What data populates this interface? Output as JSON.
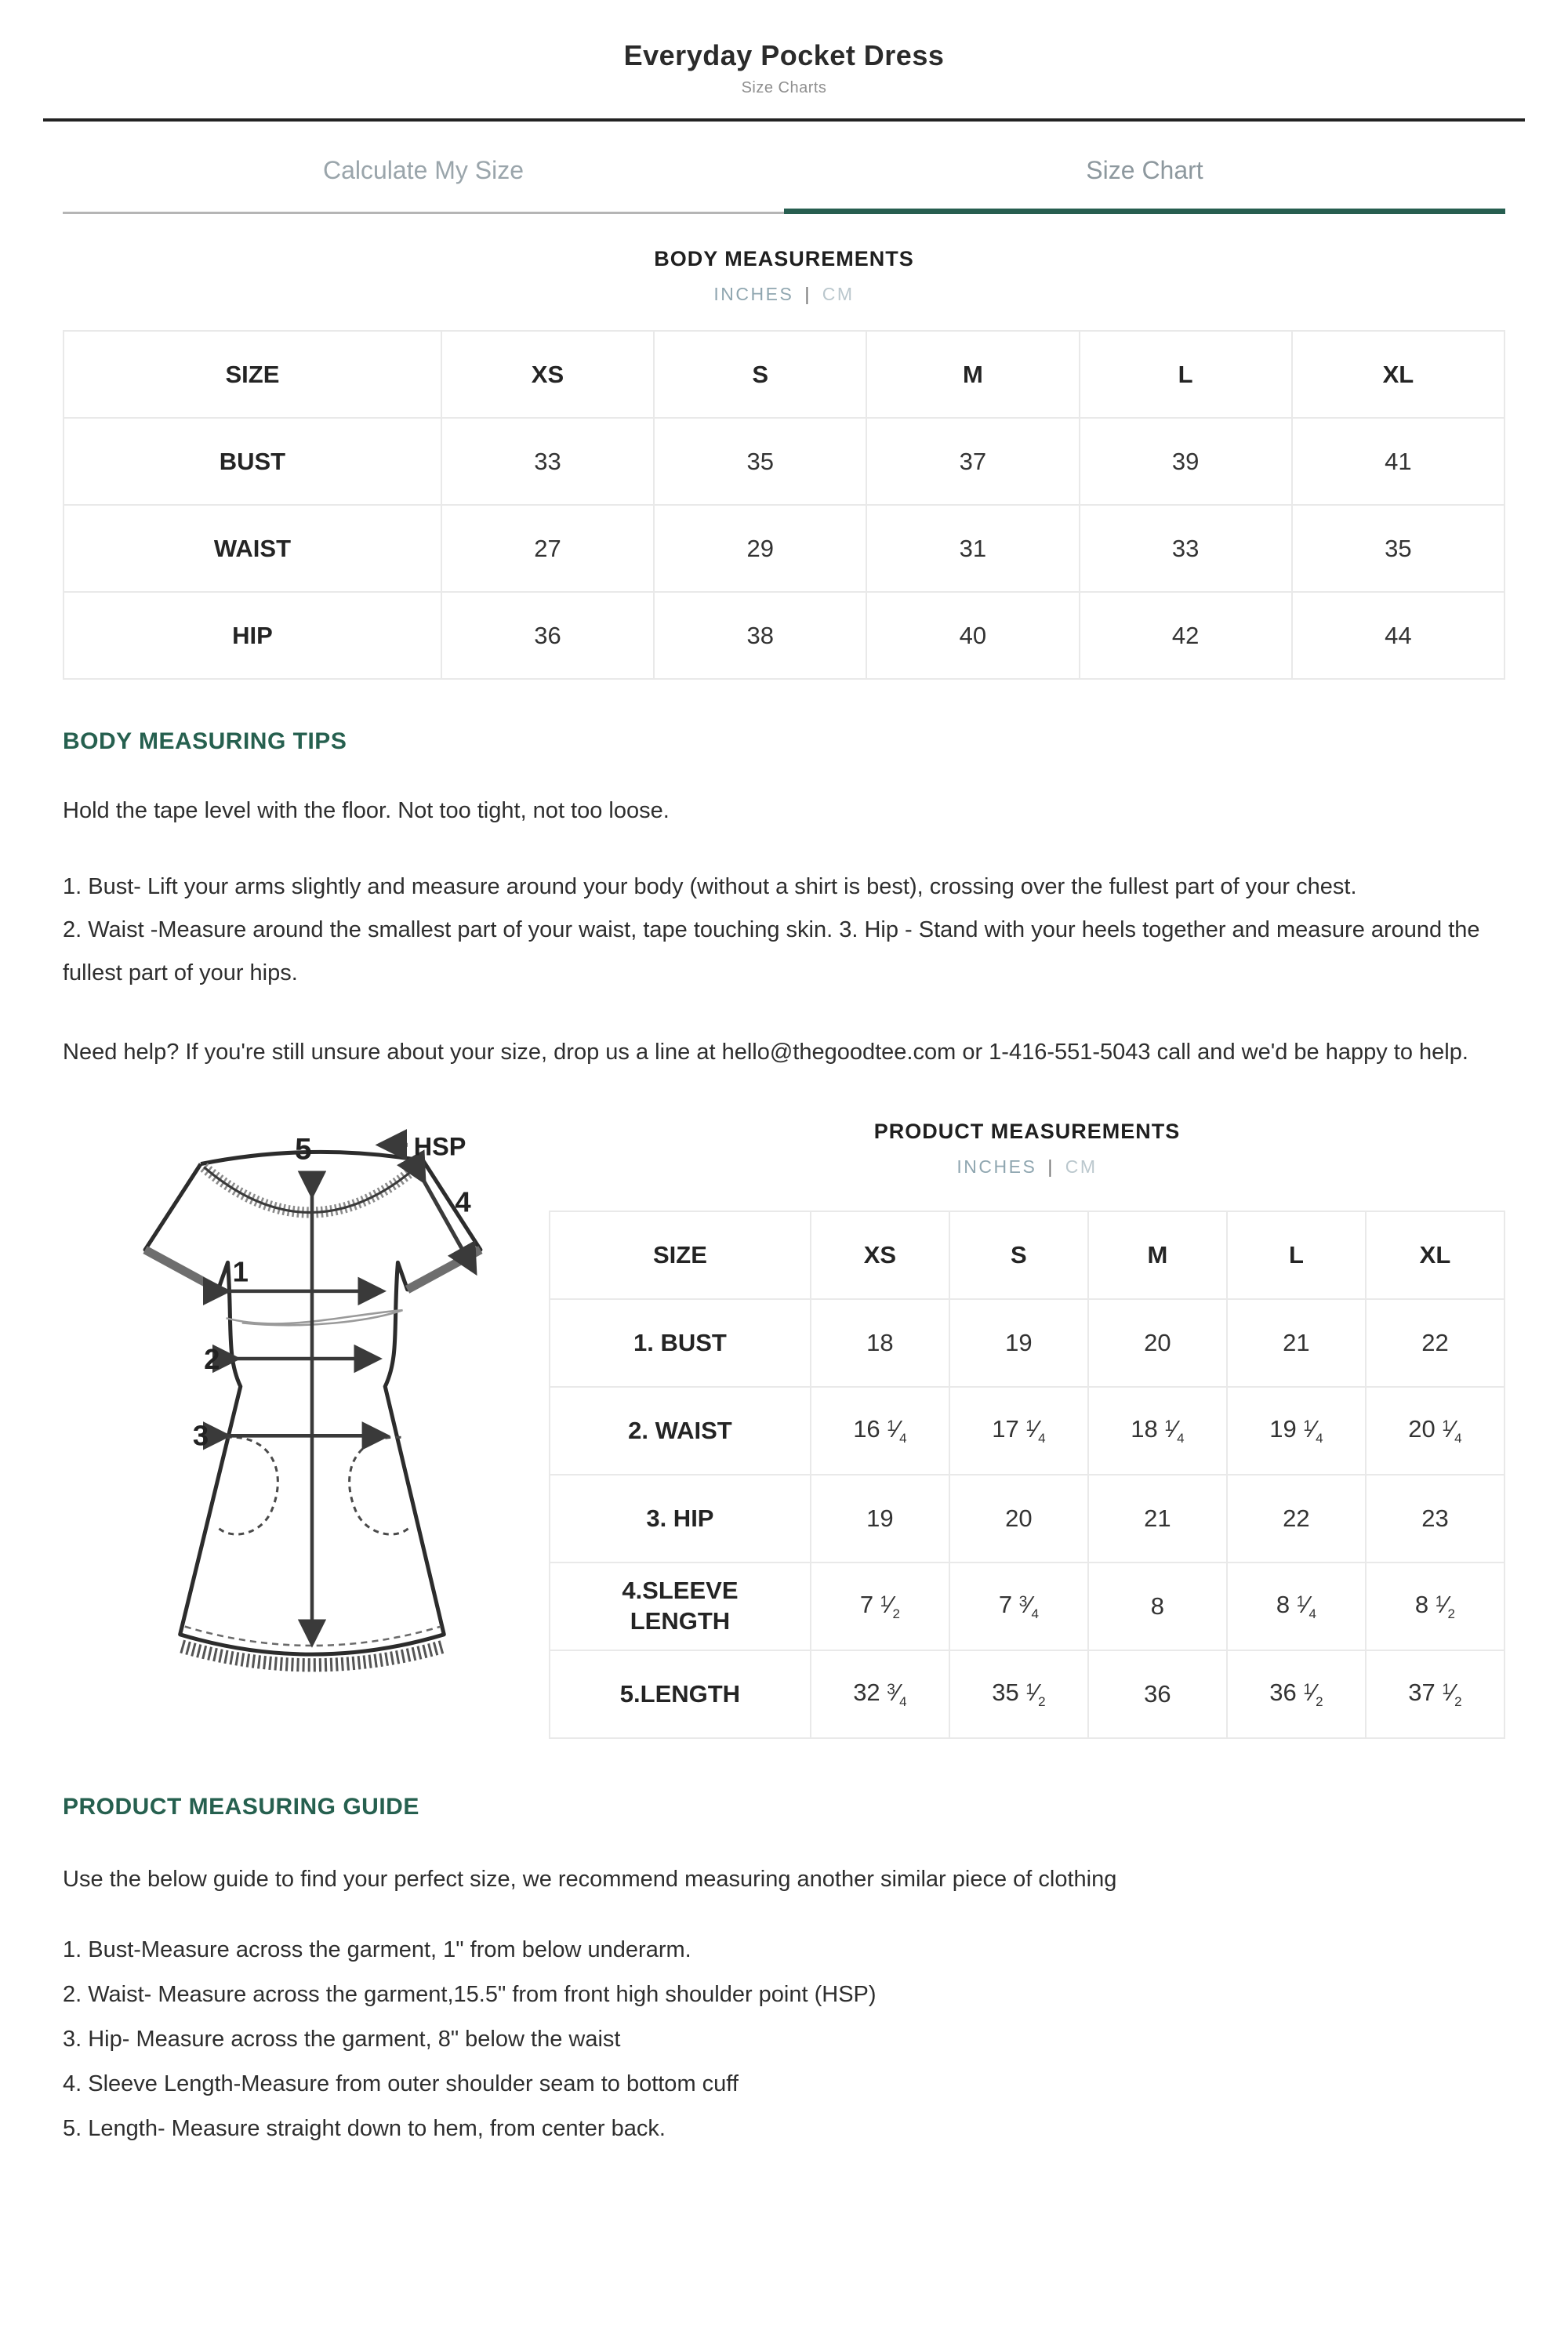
{
  "page": {
    "title": "Everyday Pocket Dress",
    "subtitle": "Size Charts"
  },
  "tabs": {
    "calculate": "Calculate My Size",
    "size_chart": "Size Chart"
  },
  "body_section": {
    "heading": "BODY MEASUREMENTS",
    "unit_inches": "INCHES",
    "unit_divider": "|",
    "unit_cm": "CM",
    "table": {
      "header": [
        "SIZE",
        "XS",
        "S",
        "M",
        "L",
        "XL"
      ],
      "rows": [
        {
          "label": "BUST",
          "values": [
            "33",
            "35",
            "37",
            "39",
            "41"
          ]
        },
        {
          "label": "WAIST",
          "values": [
            "27",
            "29",
            "31",
            "33",
            "35"
          ]
        },
        {
          "label": "HIP",
          "values": [
            "36",
            "38",
            "40",
            "42",
            "44"
          ]
        }
      ]
    }
  },
  "tips_section": {
    "heading": "BODY MEASURING TIPS",
    "intro": "Hold the tape level with the floor. Not too tight, not too loose.",
    "para1": "1. Bust- Lift your arms slightly and measure around your body (without a shirt is best), crossing over the fullest part of your chest.",
    "para2": "2. Waist -Measure around the smallest part of your waist, tape touching skin. 3. Hip - Stand with your heels together and measure around the fullest part of your hips.",
    "help": "Need help? If you're still unsure about your size, drop us a line at hello@thegoodtee.com or 1-416-551-5043 call and we'd be happy to help."
  },
  "product_section": {
    "heading": "PRODUCT MEASUREMENTS",
    "unit_inches": "INCHES",
    "unit_divider": "|",
    "unit_cm": "CM",
    "table": {
      "header": [
        "SIZE",
        "XS",
        "S",
        "M",
        "L",
        "XL"
      ],
      "rows": [
        {
          "label": "1. BUST",
          "values": [
            "18",
            "19",
            "20",
            "21",
            "22"
          ]
        },
        {
          "label": "2. WAIST",
          "values": [
            "16 1/4",
            "17 1/4",
            "18 1/4",
            "19 1/4",
            "20 1/4"
          ]
        },
        {
          "label": "3. HIP",
          "values": [
            "19",
            "20",
            "21",
            "22",
            "23"
          ]
        },
        {
          "label": "4.SLEEVE\nLENGTH",
          "values": [
            "7 1/2",
            "7 3/4",
            "8",
            "8 1/4",
            "8 1/2"
          ]
        },
        {
          "label": "5.LENGTH",
          "values": [
            "32 3/4",
            "35 1/2",
            "36",
            "36 1/2",
            "37 1/2"
          ]
        }
      ]
    }
  },
  "diagram": {
    "labels": {
      "bust": "1",
      "waist": "2",
      "hip": "3",
      "sleeve": "4",
      "length": "5",
      "hsp": "HSP"
    }
  },
  "guide_section": {
    "heading": "PRODUCT MEASURING GUIDE",
    "intro": "Use the below guide to find your perfect size, we recommend measuring another similar piece of clothing",
    "items": [
      "1. Bust-Measure across the garment, 1\" from below underarm.",
      "2. Waist- Measure across the garment,15.5\" from front high shoulder point (HSP)",
      "3. Hip- Measure across the garment, 8\" below the waist",
      "4. Sleeve Length-Measure from outer shoulder seam to bottom cuff",
      "5. Length- Measure straight down to hem, from center back."
    ]
  },
  "colors": {
    "accent_teal": "#275e50",
    "heading_teal": "#26604f",
    "inactive_underline": "#b5b5b5"
  }
}
